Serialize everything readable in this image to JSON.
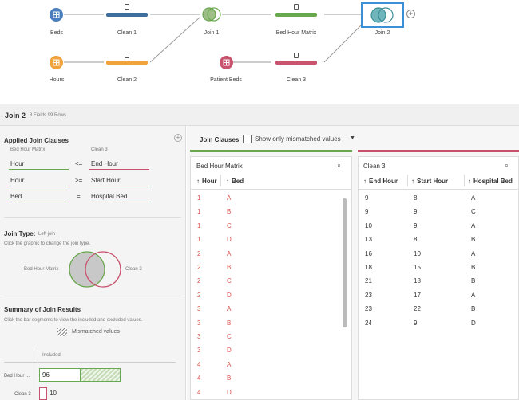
{
  "flow": {
    "nodes": [
      {
        "label": "Beds",
        "icon": "table-icon",
        "color": "#4a7fbf"
      },
      {
        "label": "Clean 1",
        "icon": "clean-step-icon",
        "color": "#3f6e9c"
      },
      {
        "label": "Join 1",
        "icon": "join-icon",
        "color": "#6aa84f"
      },
      {
        "label": "Bed Hour Matrix",
        "icon": "clean-step-icon",
        "color": "#6aa84f"
      },
      {
        "label": "Join 2",
        "icon": "join-icon",
        "color": "#5b9ea6"
      },
      {
        "label": "Hours",
        "icon": "table-icon",
        "color": "#f0a33a"
      },
      {
        "label": "Clean 2",
        "icon": "clean-step-icon",
        "color": "#f0a33a"
      },
      {
        "label": "Patient Beds",
        "icon": "table-icon",
        "color": "#c9536e"
      },
      {
        "label": "Clean 3",
        "icon": "clean-step-icon",
        "color": "#c9536e"
      }
    ]
  },
  "header": {
    "title": "Join 2",
    "meta": "8 Fields  99 Rows"
  },
  "left": {
    "clauses_title": "Applied Join Clauses",
    "left_source": "Bed Hour Matrix",
    "right_source": "Clean 3",
    "clauses": [
      {
        "left": "Hour",
        "op": "<=",
        "right": "End Hour"
      },
      {
        "left": "Hour",
        "op": ">=",
        "right": "Start Hour"
      },
      {
        "left": "Bed",
        "op": "=",
        "right": "Hospital Bed"
      }
    ],
    "join_type_label": "Join Type:",
    "join_type_value": "Left join",
    "join_type_hint": "Click the graphic to change the join type.",
    "venn_left": "Bed Hour Matrix",
    "venn_right": "Clean 3",
    "summary_title": "Summary of Join Results",
    "summary_hint": "Click the bar segments to view the included and excluded values.",
    "mismatched_label": "Mismatched values",
    "included_header": "Included",
    "summary_rows": [
      {
        "label": "Bed Hour ...",
        "included": "96",
        "color": "#6aa84f"
      },
      {
        "label": "Clean 3",
        "included": "10",
        "color": "#c9536e"
      }
    ]
  },
  "right": {
    "tab_label": "Join Clauses",
    "checkbox_label": "Show only mismatched values",
    "left_grid": {
      "title": "Bed Hour Matrix",
      "columns": [
        "Hour",
        "Bed"
      ],
      "rows": [
        [
          "1",
          "A"
        ],
        [
          "1",
          "B"
        ],
        [
          "1",
          "C"
        ],
        [
          "1",
          "D"
        ],
        [
          "2",
          "A"
        ],
        [
          "2",
          "B"
        ],
        [
          "2",
          "C"
        ],
        [
          "2",
          "D"
        ],
        [
          "3",
          "A"
        ],
        [
          "3",
          "B"
        ],
        [
          "3",
          "C"
        ],
        [
          "3",
          "D"
        ],
        [
          "4",
          "A"
        ],
        [
          "4",
          "B"
        ],
        [
          "4",
          "D"
        ]
      ]
    },
    "right_grid": {
      "title": "Clean 3",
      "columns": [
        "End Hour",
        "Start Hour",
        "Hospital Bed"
      ],
      "rows": [
        [
          "9",
          "8",
          "A"
        ],
        [
          "9",
          "9",
          "C"
        ],
        [
          "10",
          "9",
          "A"
        ],
        [
          "13",
          "8",
          "B"
        ],
        [
          "16",
          "10",
          "A"
        ],
        [
          "18",
          "15",
          "B"
        ],
        [
          "21",
          "18",
          "B"
        ],
        [
          "23",
          "17",
          "A"
        ],
        [
          "23",
          "22",
          "B"
        ],
        [
          "24",
          "9",
          "D"
        ]
      ]
    }
  }
}
